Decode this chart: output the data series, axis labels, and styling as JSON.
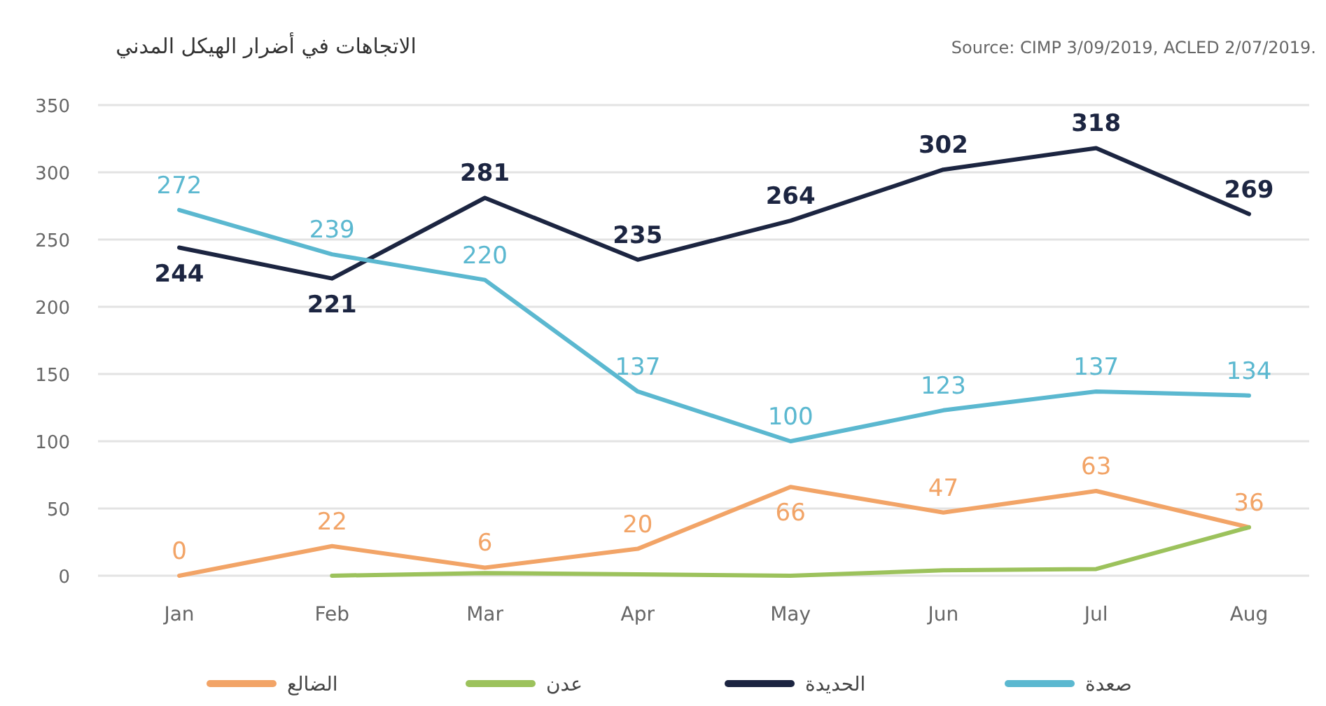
{
  "chart_data": {
    "type": "line",
    "title": "الاتجاهات في أضرار الهيكل المدني",
    "annotations": [
      "Source: CIMP 3/09/2019, ACLED 2/07/2019."
    ],
    "categories": [
      "Jan",
      "Feb",
      "Mar",
      "Apr",
      "May",
      "Jun",
      "Jul",
      "Aug"
    ],
    "series": [
      {
        "name": "الضالع",
        "color": "#f2a467",
        "values": [
          0,
          22,
          6,
          20,
          66,
          47,
          63,
          36
        ],
        "value_labels": [
          "0",
          "22",
          "6",
          "20",
          "66",
          "47",
          "63",
          "36"
        ]
      },
      {
        "name": "عدن",
        "color": "#9cc25c",
        "values": [
          null,
          0,
          2,
          1,
          0,
          4,
          5,
          36
        ]
      },
      {
        "name": "الحديدة",
        "color": "#1c2541",
        "values": [
          244,
          221,
          281,
          235,
          264,
          302,
          318,
          269
        ],
        "value_labels": [
          "244",
          "221",
          "281",
          "235",
          "264",
          "302",
          "318",
          "269"
        ]
      },
      {
        "name": "صعدة",
        "color": "#5bb8d0",
        "values": [
          272,
          239,
          220,
          137,
          100,
          123,
          137,
          134
        ],
        "value_labels": [
          "272",
          "239",
          "220",
          "137",
          "100",
          "123",
          "137",
          "134"
        ]
      }
    ],
    "ylim": [
      0,
      350
    ],
    "yticks": [
      0,
      50,
      100,
      150,
      200,
      250,
      300,
      350
    ],
    "grid": "y",
    "legend": "bottom",
    "marker": "none",
    "line_style": "solid"
  }
}
